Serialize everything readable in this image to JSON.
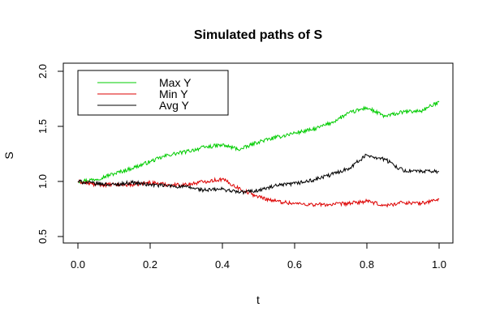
{
  "chart_data": {
    "type": "line",
    "title": "Simulated paths of S",
    "xlabel": "t",
    "ylabel": "S",
    "xlim": [
      0,
      1
    ],
    "ylim": [
      0.5,
      2.0
    ],
    "x_ticks": [
      0.0,
      0.2,
      0.4,
      0.6,
      0.8,
      1.0
    ],
    "x_tick_labels": [
      "0.0",
      "0.2",
      "0.4",
      "0.6",
      "0.8",
      "1.0"
    ],
    "y_ticks": [
      0.5,
      1.0,
      1.5,
      2.0
    ],
    "y_tick_labels": [
      "0.5",
      "1.0",
      "1.5",
      "2.0"
    ],
    "grid": false,
    "legend_position": "top-left",
    "x": [
      0.0,
      0.05,
      0.1,
      0.15,
      0.2,
      0.25,
      0.3,
      0.35,
      0.4,
      0.45,
      0.5,
      0.55,
      0.6,
      0.65,
      0.7,
      0.75,
      0.8,
      0.85,
      0.9,
      0.95,
      1.0
    ],
    "series": [
      {
        "name": "Max Y",
        "color": "#00cc00",
        "values": [
          1.0,
          1.02,
          1.07,
          1.12,
          1.18,
          1.24,
          1.27,
          1.31,
          1.33,
          1.29,
          1.36,
          1.4,
          1.44,
          1.47,
          1.53,
          1.62,
          1.67,
          1.59,
          1.63,
          1.64,
          1.72
        ]
      },
      {
        "name": "Min Y",
        "color": "#dd0000",
        "values": [
          1.0,
          0.97,
          0.97,
          0.97,
          0.99,
          0.97,
          0.97,
          1.0,
          1.02,
          0.93,
          0.86,
          0.82,
          0.8,
          0.79,
          0.79,
          0.8,
          0.82,
          0.78,
          0.81,
          0.8,
          0.84
        ]
      },
      {
        "name": "Avg Y",
        "color": "#000000",
        "values": [
          1.0,
          0.98,
          0.97,
          0.99,
          0.97,
          0.96,
          0.95,
          0.92,
          0.93,
          0.9,
          0.92,
          0.96,
          0.98,
          1.01,
          1.06,
          1.12,
          1.24,
          1.2,
          1.1,
          1.09,
          1.09
        ]
      }
    ]
  }
}
